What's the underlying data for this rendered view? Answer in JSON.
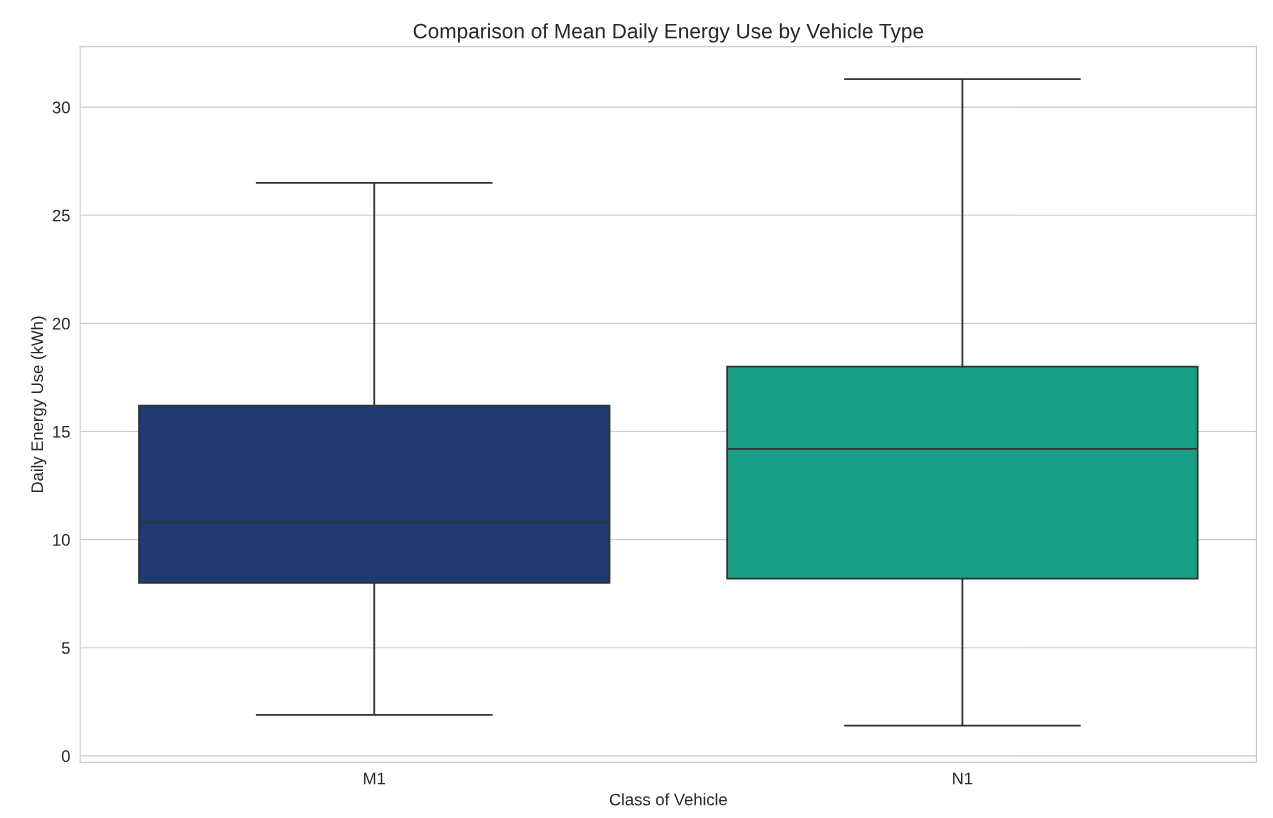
{
  "chart_data": {
    "type": "box",
    "title": "Comparison of Mean Daily Energy Use by Vehicle Type",
    "xlabel": "Class of Vehicle",
    "ylabel": "Daily Energy Use (kWh)",
    "categories": [
      "M1",
      "N1"
    ],
    "colors": [
      "#1f3a70",
      "#17a086"
    ],
    "boxes": [
      {
        "low": 1.9,
        "q1": 8.0,
        "median": 10.8,
        "q3": 16.2,
        "high": 26.5
      },
      {
        "low": 1.4,
        "q1": 8.2,
        "median": 14.2,
        "q3": 18.0,
        "high": 31.3
      }
    ],
    "ylim": [
      -0.3,
      32.8
    ],
    "yticks": [
      0,
      5,
      10,
      15,
      20,
      25,
      30
    ],
    "grid": "y"
  }
}
